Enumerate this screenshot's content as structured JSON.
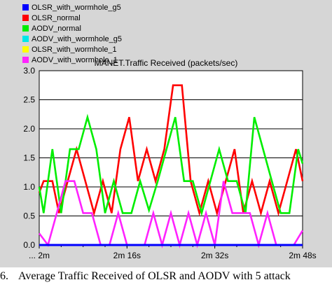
{
  "legend": [
    {
      "label": "OLSR_with_wormhole_g5",
      "color": "#0000ff"
    },
    {
      "label": "OLSR_normal",
      "color": "#ff0000"
    },
    {
      "label": "AODV_normal",
      "color": "#00ee00"
    },
    {
      "label": "AODV_with_wormhole_g5",
      "color": "#00e8e8"
    },
    {
      "label": "OLSR_with_wormhole_1",
      "color": "#ffff00"
    },
    {
      "label": "AODV_with_wormhole_1",
      "color": "#ff22ff"
    }
  ],
  "caption": {
    "number": "6.",
    "text": "Average Traffic Received of OLSR and AODV with 5 attack"
  },
  "chart_data": {
    "type": "line",
    "title": "MANET.Traffic Received (packets/sec)",
    "xlabel": "",
    "ylabel": "",
    "xlim": [
      0,
      48
    ],
    "ylim": [
      0,
      3.0
    ],
    "yticks": [
      0.0,
      0.5,
      1.0,
      1.5,
      2.0,
      2.5,
      3.0
    ],
    "ytick_labels": [
      "0.0",
      "0.5",
      "1.0",
      "1.5",
      "2.0",
      "2.5",
      "3.0"
    ],
    "xticks": [
      0,
      16,
      32,
      48
    ],
    "xtick_labels": [
      "... 2m",
      "2m 16s",
      "2m 32s",
      "2m 48s"
    ],
    "grid": true,
    "legend_position": "top-left",
    "series": [
      {
        "name": "OLSR_with_wormhole_g5",
        "color": "#0000ff",
        "x": [
          0,
          48
        ],
        "y": [
          0.0,
          0.0
        ]
      },
      {
        "name": "OLSR_normal",
        "color": "#ff0000",
        "x": [
          0,
          0.8,
          2.4,
          3.6,
          5.2,
          6.8,
          8.4,
          10.0,
          11.6,
          13.2,
          14.8,
          16.4,
          18.0,
          19.6,
          21.2,
          22.8,
          24.4,
          26.0,
          27.6,
          29.2,
          30.8,
          32.4,
          34.0,
          35.6,
          37.2,
          38.8,
          40.4,
          42.0,
          43.6,
          45.2,
          46.8,
          48.0
        ],
        "y": [
          0.9,
          1.1,
          1.1,
          0.55,
          1.1,
          1.65,
          1.1,
          0.55,
          1.1,
          0.55,
          1.65,
          2.2,
          1.1,
          1.65,
          1.1,
          1.65,
          2.75,
          2.75,
          1.1,
          0.55,
          1.1,
          0.55,
          1.1,
          1.65,
          0.55,
          1.1,
          0.55,
          1.1,
          0.55,
          1.1,
          1.65,
          1.1
        ]
      },
      {
        "name": "AODV_normal",
        "color": "#00ee00",
        "x": [
          0,
          0.8,
          2.4,
          4.0,
          5.6,
          7.2,
          8.8,
          10.4,
          12.0,
          13.6,
          15.2,
          16.8,
          18.4,
          20.0,
          21.6,
          23.2,
          24.8,
          26.4,
          28.0,
          29.6,
          31.2,
          32.8,
          34.4,
          36.0,
          37.6,
          39.2,
          40.8,
          42.4,
          44.0,
          45.6,
          47.2,
          48.0
        ],
        "y": [
          1.0,
          0.55,
          1.65,
          0.55,
          1.65,
          1.65,
          2.2,
          1.65,
          0.55,
          1.1,
          0.55,
          0.55,
          1.1,
          0.6,
          1.1,
          1.65,
          2.2,
          1.1,
          1.1,
          0.55,
          1.1,
          1.65,
          1.1,
          1.1,
          0.55,
          2.2,
          1.65,
          1.1,
          0.55,
          0.55,
          1.65,
          1.4
        ]
      },
      {
        "name": "AODV_with_wormhole_1",
        "color": "#ff22ff",
        "x": [
          0,
          1.6,
          3.2,
          4.8,
          6.4,
          8.0,
          9.6,
          11.2,
          12.8,
          14.4,
          16.0,
          17.6,
          19.2,
          20.8,
          22.4,
          24.0,
          25.6,
          27.2,
          28.8,
          30.4,
          32.0,
          33.6,
          35.2,
          36.8,
          38.4,
          40.0,
          41.6,
          43.2,
          44.8,
          46.4,
          48.0
        ],
        "y": [
          0.2,
          0.0,
          0.55,
          1.1,
          1.1,
          0.55,
          0.55,
          0.0,
          0.0,
          0.55,
          0.0,
          0.0,
          0.0,
          0.55,
          0.0,
          0.55,
          0.0,
          0.55,
          0.0,
          0.55,
          0.0,
          1.1,
          0.55,
          0.55,
          0.55,
          0.0,
          0.55,
          0.0,
          0.0,
          0.0,
          0.25
        ]
      }
    ]
  }
}
